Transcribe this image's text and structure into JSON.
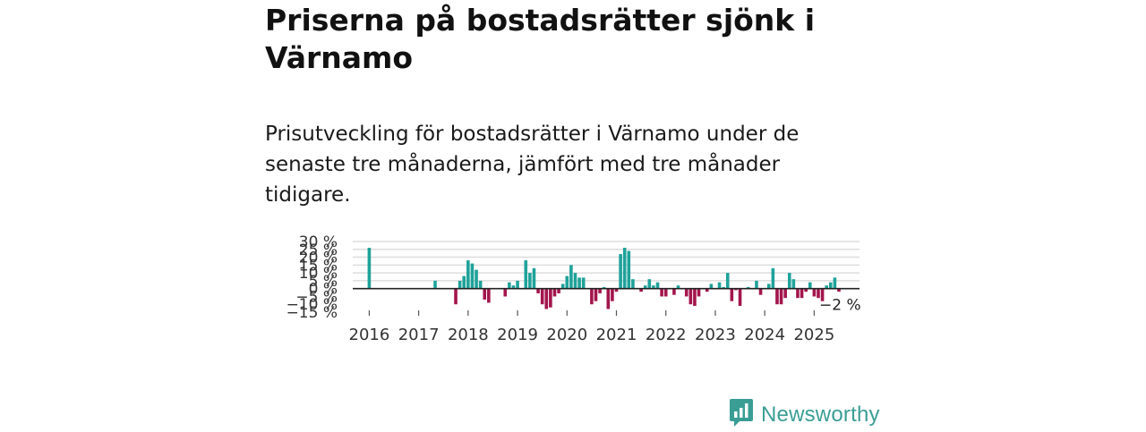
{
  "title": "Priserna på bostadsrätter sjönk i Värnamo",
  "subtitle": "Prisutveckling för bostadsrätter i Värnamo under de senaste tre månaderna, jämfört med tre månader tidigare.",
  "brand": {
    "name": "Newsworthy",
    "icon": "newsworthy-logo-icon"
  },
  "colors": {
    "positive": "#1fa29a",
    "negative": "#a3154d",
    "grid": "#dddddd",
    "brand": "#3a9e95"
  },
  "chart_data": {
    "type": "bar",
    "title": "",
    "xlabel": "",
    "ylabel": "",
    "ylim": [
      -15,
      30
    ],
    "yticks": [
      {
        "value": 30,
        "label": "30 %"
      },
      {
        "value": 25,
        "label": "25 %"
      },
      {
        "value": 20,
        "label": "20 %"
      },
      {
        "value": 15,
        "label": "15 %"
      },
      {
        "value": 10,
        "label": "10 %"
      },
      {
        "value": 5,
        "label": "5 %"
      },
      {
        "value": 0,
        "label": "0 %"
      },
      {
        "value": -5,
        "label": "−5 %"
      },
      {
        "value": -10,
        "label": "−10 %"
      },
      {
        "value": -15,
        "label": "−15 %"
      }
    ],
    "xlim": [
      "2015-09",
      "2025-12"
    ],
    "xticks": [
      {
        "value": "2016-01",
        "label": "2016"
      },
      {
        "value": "2017-01",
        "label": "2017"
      },
      {
        "value": "2018-01",
        "label": "2018"
      },
      {
        "value": "2019-01",
        "label": "2019"
      },
      {
        "value": "2020-01",
        "label": "2020"
      },
      {
        "value": "2021-01",
        "label": "2021"
      },
      {
        "value": "2022-01",
        "label": "2022"
      },
      {
        "value": "2023-01",
        "label": "2023"
      },
      {
        "value": "2024-01",
        "label": "2024"
      },
      {
        "value": "2025-01",
        "label": "2025"
      }
    ],
    "last_label": "−2 %",
    "points": [
      {
        "date": "2016-01",
        "value": 26
      },
      {
        "date": "2017-05",
        "value": 5
      },
      {
        "date": "2017-10",
        "value": -10
      },
      {
        "date": "2017-11",
        "value": 5
      },
      {
        "date": "2017-12",
        "value": 8
      },
      {
        "date": "2018-01",
        "value": 18
      },
      {
        "date": "2018-02",
        "value": 16
      },
      {
        "date": "2018-03",
        "value": 12
      },
      {
        "date": "2018-04",
        "value": 5
      },
      {
        "date": "2018-05",
        "value": -7
      },
      {
        "date": "2018-06",
        "value": -9
      },
      {
        "date": "2018-10",
        "value": -5
      },
      {
        "date": "2018-11",
        "value": 4
      },
      {
        "date": "2018-12",
        "value": 2
      },
      {
        "date": "2019-01",
        "value": 5
      },
      {
        "date": "2019-03",
        "value": 18
      },
      {
        "date": "2019-04",
        "value": 10
      },
      {
        "date": "2019-05",
        "value": 13
      },
      {
        "date": "2019-06",
        "value": -3
      },
      {
        "date": "2019-07",
        "value": -10
      },
      {
        "date": "2019-08",
        "value": -13
      },
      {
        "date": "2019-09",
        "value": -12
      },
      {
        "date": "2019-10",
        "value": -5
      },
      {
        "date": "2019-11",
        "value": -3
      },
      {
        "date": "2019-12",
        "value": 3
      },
      {
        "date": "2020-01",
        "value": 8
      },
      {
        "date": "2020-02",
        "value": 15
      },
      {
        "date": "2020-03",
        "value": 10
      },
      {
        "date": "2020-04",
        "value": 7
      },
      {
        "date": "2020-05",
        "value": 7
      },
      {
        "date": "2020-07",
        "value": -10
      },
      {
        "date": "2020-08",
        "value": -8
      },
      {
        "date": "2020-09",
        "value": -3
      },
      {
        "date": "2020-10",
        "value": 1
      },
      {
        "date": "2020-11",
        "value": -13
      },
      {
        "date": "2020-12",
        "value": -8
      },
      {
        "date": "2021-01",
        "value": -2
      },
      {
        "date": "2021-02",
        "value": 22
      },
      {
        "date": "2021-03",
        "value": 26
      },
      {
        "date": "2021-04",
        "value": 24
      },
      {
        "date": "2021-05",
        "value": 6
      },
      {
        "date": "2021-07",
        "value": -2
      },
      {
        "date": "2021-08",
        "value": 2
      },
      {
        "date": "2021-09",
        "value": 6
      },
      {
        "date": "2021-10",
        "value": 2
      },
      {
        "date": "2021-11",
        "value": 4
      },
      {
        "date": "2021-12",
        "value": -5
      },
      {
        "date": "2022-01",
        "value": -5
      },
      {
        "date": "2022-03",
        "value": -4
      },
      {
        "date": "2022-04",
        "value": 2
      },
      {
        "date": "2022-06",
        "value": -5
      },
      {
        "date": "2022-07",
        "value": -10
      },
      {
        "date": "2022-08",
        "value": -11
      },
      {
        "date": "2022-09",
        "value": -5
      },
      {
        "date": "2022-11",
        "value": -2
      },
      {
        "date": "2022-12",
        "value": 3
      },
      {
        "date": "2023-02",
        "value": 4
      },
      {
        "date": "2023-03",
        "value": 1
      },
      {
        "date": "2023-04",
        "value": 10
      },
      {
        "date": "2023-05",
        "value": -8
      },
      {
        "date": "2023-06",
        "value": -1
      },
      {
        "date": "2023-07",
        "value": -11
      },
      {
        "date": "2023-09",
        "value": 1
      },
      {
        "date": "2023-11",
        "value": 5
      },
      {
        "date": "2023-12",
        "value": -4
      },
      {
        "date": "2024-02",
        "value": 3
      },
      {
        "date": "2024-03",
        "value": 13
      },
      {
        "date": "2024-04",
        "value": -10
      },
      {
        "date": "2024-05",
        "value": -10
      },
      {
        "date": "2024-06",
        "value": -6
      },
      {
        "date": "2024-07",
        "value": 10
      },
      {
        "date": "2024-08",
        "value": 6
      },
      {
        "date": "2024-09",
        "value": -6
      },
      {
        "date": "2024-10",
        "value": -6
      },
      {
        "date": "2024-11",
        "value": -2
      },
      {
        "date": "2024-12",
        "value": 4
      },
      {
        "date": "2025-01",
        "value": -5
      },
      {
        "date": "2025-02",
        "value": -6
      },
      {
        "date": "2025-03",
        "value": -8
      },
      {
        "date": "2025-04",
        "value": 2
      },
      {
        "date": "2025-05",
        "value": 4
      },
      {
        "date": "2025-06",
        "value": 7
      },
      {
        "date": "2025-07",
        "value": -2
      }
    ]
  }
}
